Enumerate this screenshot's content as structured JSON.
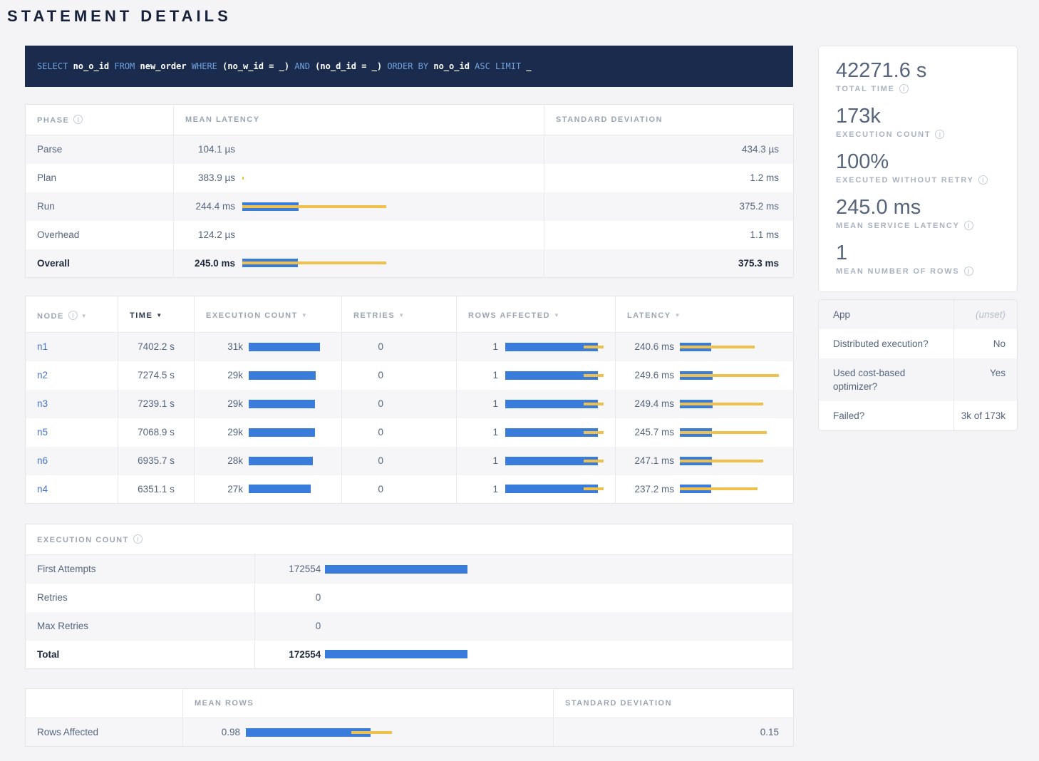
{
  "title": "STATEMENT DETAILS",
  "sql": {
    "tokens": [
      {
        "text": "SELECT ",
        "type": "kw"
      },
      {
        "text": "no_o_id",
        "type": "id"
      },
      {
        "text": " FROM ",
        "type": "kw"
      },
      {
        "text": "new_order",
        "type": "id"
      },
      {
        "text": " WHERE ",
        "type": "kw"
      },
      {
        "text": "(no_w_id = _)",
        "type": "id"
      },
      {
        "text": " AND ",
        "type": "kw"
      },
      {
        "text": "(no_d_id = _)",
        "type": "id"
      },
      {
        "text": " ORDER BY ",
        "type": "kw"
      },
      {
        "text": "no_o_id",
        "type": "id"
      },
      {
        "text": " ASC LIMIT ",
        "type": "kw"
      },
      {
        "text": "_",
        "type": "id"
      }
    ]
  },
  "colors": {
    "bar_blue": "#3a7cdb",
    "bar_yellow": "#f0c14a",
    "sql_bg": "#1b2b4d",
    "link_blue": "#4573d2"
  },
  "phases": {
    "headers": {
      "phase": "Phase",
      "mean": "Mean Latency",
      "stddev": "Standard Deviation"
    },
    "rows": [
      {
        "phase": "Parse",
        "mean": "104.1 µs",
        "stddev": "434.3 µs",
        "bar": null
      },
      {
        "phase": "Plan",
        "mean": "383.9 µs",
        "stddev": "1.2 ms",
        "bar": {
          "yellow": [
            0,
            2
          ]
        }
      },
      {
        "phase": "Run",
        "mean": "244.4 ms",
        "stddev": "375.2 ms",
        "bar": {
          "blue": 79,
          "yellow": [
            0,
            202
          ]
        }
      },
      {
        "phase": "Overhead",
        "mean": "124.2 µs",
        "stddev": "1.1 ms",
        "bar": null
      },
      {
        "phase": "Overall",
        "mean": "245.0 ms",
        "stddev": "375.3 ms",
        "bar": {
          "blue": 78,
          "yellow": [
            0,
            202
          ]
        }
      }
    ]
  },
  "nodes": {
    "headers": {
      "node": "Node",
      "time": "Time",
      "count": "Execution Count",
      "retries": "Retries",
      "rows": "Rows Affected",
      "latency": "Latency"
    },
    "rows": [
      {
        "node": "n1",
        "time": "7402.2 s",
        "count": "31k",
        "count_bar": {
          "blue": 100
        },
        "retries": "0",
        "rows": "1",
        "rows_bar": {
          "blue": 130,
          "yellow": [
            110,
            42
          ]
        },
        "latency": "240.6 ms",
        "latency_bar": {
          "blue": 44,
          "yellow": [
            0,
            105
          ]
        }
      },
      {
        "node": "n2",
        "time": "7274.5 s",
        "count": "29k",
        "count_bar": {
          "blue": 94
        },
        "retries": "0",
        "rows": "1",
        "rows_bar": {
          "blue": 130,
          "yellow": [
            110,
            42
          ]
        },
        "latency": "249.6 ms",
        "latency_bar": {
          "blue": 46,
          "yellow": [
            0,
            139
          ]
        }
      },
      {
        "node": "n3",
        "time": "7239.1 s",
        "count": "29k",
        "count_bar": {
          "blue": 93
        },
        "retries": "0",
        "rows": "1",
        "rows_bar": {
          "blue": 130,
          "yellow": [
            110,
            42
          ]
        },
        "latency": "249.4 ms",
        "latency_bar": {
          "blue": 46,
          "yellow": [
            0,
            117
          ]
        }
      },
      {
        "node": "n5",
        "time": "7068.9 s",
        "count": "29k",
        "count_bar": {
          "blue": 93
        },
        "retries": "0",
        "rows": "1",
        "rows_bar": {
          "blue": 130,
          "yellow": [
            110,
            42
          ]
        },
        "latency": "245.7 ms",
        "latency_bar": {
          "blue": 45,
          "yellow": [
            0,
            122
          ]
        }
      },
      {
        "node": "n6",
        "time": "6935.7 s",
        "count": "28k",
        "count_bar": {
          "blue": 90
        },
        "retries": "0",
        "rows": "1",
        "rows_bar": {
          "blue": 130,
          "yellow": [
            110,
            42
          ]
        },
        "latency": "247.1 ms",
        "latency_bar": {
          "blue": 45,
          "yellow": [
            0,
            117
          ]
        }
      },
      {
        "node": "n4",
        "time": "6351.1 s",
        "count": "27k",
        "count_bar": {
          "blue": 87
        },
        "retries": "0",
        "rows": "1",
        "rows_bar": {
          "blue": 130,
          "yellow": [
            110,
            42
          ]
        },
        "latency": "237.2 ms",
        "latency_bar": {
          "blue": 44,
          "yellow": [
            0,
            109
          ]
        }
      }
    ]
  },
  "exec_count": {
    "header": "Execution Count",
    "rows": [
      {
        "label": "First Attempts",
        "value": "172554",
        "bar": {
          "blue": 200
        }
      },
      {
        "label": "Retries",
        "value": "0",
        "bar": null
      },
      {
        "label": "Max Retries",
        "value": "0",
        "bar": null
      },
      {
        "label": "Total",
        "value": "172554",
        "bar": {
          "blue": 200
        }
      }
    ]
  },
  "rows_affected": {
    "headers": {
      "blank": "",
      "mean": "Mean Rows",
      "stddev": "Standard Deviation"
    },
    "rows": [
      {
        "label": "Rows Affected",
        "mean": "0.98",
        "bar": {
          "blue": 175,
          "yellow": [
            148,
            57
          ]
        },
        "stddev": "0.15"
      }
    ]
  },
  "summary": {
    "stats": [
      {
        "value": "42271.6 s",
        "label": "Total Time"
      },
      {
        "value": "173k",
        "label": "Execution Count"
      },
      {
        "value": "100%",
        "label": "Executed without Retry"
      },
      {
        "value": "245.0 ms",
        "label": "Mean Service Latency"
      },
      {
        "value": "1",
        "label": "Mean Number of Rows"
      }
    ]
  },
  "details": {
    "rows": [
      {
        "label": "App",
        "value": "(unset)"
      },
      {
        "label": "Distributed execution?",
        "value": "No"
      },
      {
        "label": "Used cost-based optimizer?",
        "value": "Yes"
      },
      {
        "label": "Failed?",
        "value": "3k of 173k"
      }
    ]
  }
}
